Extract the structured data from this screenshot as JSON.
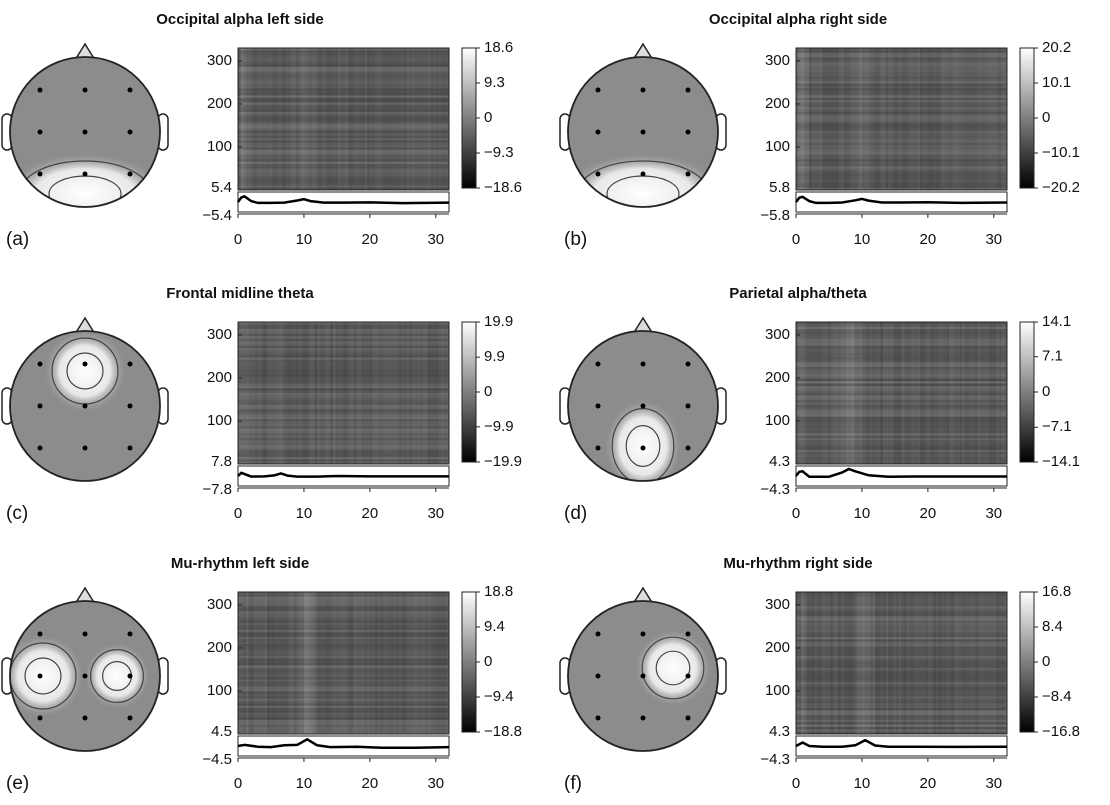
{
  "chart_data": [
    {
      "type": "heatmap",
      "label": "(a)",
      "title": "Occipital alpha left side",
      "ylim": [
        0,
        330
      ],
      "yticks": [
        100,
        200,
        300
      ],
      "xlim": [
        0,
        32
      ],
      "xticks": [
        0,
        10,
        20,
        30
      ],
      "colorbar": {
        "lim": [
          -18.6,
          18.6
        ],
        "ticks": [
          18.6,
          9.3,
          0,
          {
            "value": -9.3,
            "label": "−9.3"
          },
          {
            "value": -18.6,
            "label": "−18.6"
          }
        ]
      },
      "trace": {
        "ylim": [
          -5.4,
          5.4
        ],
        "yticks": [
          5.4,
          {
            "value": -5.4,
            "label": "−5.4"
          }
        ],
        "x": [
          0,
          0.5,
          1,
          2,
          3,
          5,
          7,
          9,
          10,
          11,
          13,
          16,
          20,
          25,
          32
        ],
        "values": [
          0,
          2.5,
          3,
          0.5,
          -0.5,
          -0.5,
          -0.3,
          0.8,
          1.5,
          0.5,
          -0.3,
          -0.3,
          -0.2,
          -0.6,
          -0.3
        ]
      }
    },
    {
      "type": "heatmap",
      "label": "(b)",
      "title": "Occipital alpha right side",
      "ylim": [
        0,
        330
      ],
      "yticks": [
        100,
        200,
        300
      ],
      "xlim": [
        0,
        32
      ],
      "xticks": [
        0,
        10,
        20,
        30
      ],
      "colorbar": {
        "lim": [
          -20.2,
          20.2
        ],
        "ticks": [
          20.2,
          10.1,
          0,
          {
            "value": -10.1,
            "label": "−10.1"
          },
          {
            "value": -20.2,
            "label": "−20.2"
          }
        ]
      },
      "trace": {
        "ylim": [
          -5.8,
          5.8
        ],
        "yticks": [
          5.8,
          {
            "value": -5.8,
            "label": "−5.8"
          }
        ],
        "x": [
          0,
          0.5,
          1,
          2,
          3,
          5,
          7,
          9,
          10,
          11,
          13,
          16,
          20,
          25,
          32
        ],
        "values": [
          0,
          2.5,
          3,
          0.5,
          -0.5,
          -0.5,
          -0.3,
          1,
          1.8,
          0.8,
          -0.3,
          -0.3,
          -0.2,
          -0.5,
          -0.3
        ]
      }
    },
    {
      "type": "heatmap",
      "label": "(c)",
      "title": "Frontal midline theta",
      "ylim": [
        0,
        330
      ],
      "yticks": [
        100,
        200,
        300
      ],
      "xlim": [
        0,
        32
      ],
      "xticks": [
        0,
        10,
        20,
        30
      ],
      "colorbar": {
        "lim": [
          -19.9,
          19.9
        ],
        "ticks": [
          19.9,
          9.9,
          0,
          {
            "value": -9.9,
            "label": "−9.9"
          },
          {
            "value": -19.9,
            "label": "−19.9"
          }
        ]
      },
      "trace": {
        "ylim": [
          -7.8,
          7.8
        ],
        "yticks": [
          7.8,
          {
            "value": -7.8,
            "label": "−7.8"
          }
        ],
        "x": [
          0,
          0.5,
          1,
          2,
          4,
          5.5,
          6.5,
          7.5,
          9,
          12,
          15,
          20,
          25,
          32
        ],
        "values": [
          0,
          2.5,
          1.5,
          -0.5,
          -0.3,
          0.5,
          2,
          0.3,
          -0.5,
          -0.5,
          0,
          -0.3,
          -0.3,
          -0.3
        ]
      }
    },
    {
      "type": "heatmap",
      "label": "(d)",
      "title": "Parietal alpha/theta",
      "ylim": [
        0,
        330
      ],
      "yticks": [
        100,
        200,
        300
      ],
      "xlim": [
        0,
        32
      ],
      "xticks": [
        0,
        10,
        20,
        30
      ],
      "colorbar": {
        "lim": [
          -14.1,
          14.1
        ],
        "ticks": [
          14.1,
          7.1,
          0,
          {
            "value": -7.1,
            "label": "−7.1"
          },
          {
            "value": -14.1,
            "label": "−14.1"
          }
        ]
      },
      "trace": {
        "ylim": [
          -4.3,
          4.3
        ],
        "yticks": [
          4.3,
          {
            "value": -4.3,
            "label": "−4.3"
          }
        ],
        "x": [
          0,
          0.5,
          1,
          2,
          3,
          5,
          7,
          8,
          9,
          11,
          14,
          18,
          25,
          32
        ],
        "values": [
          0,
          1.8,
          2,
          -0.3,
          -0.3,
          -0.3,
          1.5,
          3,
          2,
          0.3,
          -0.3,
          -0.2,
          -0.2,
          -0.2
        ]
      }
    },
    {
      "type": "heatmap",
      "label": "(e)",
      "title": "Mu-rhythm left side",
      "ylim": [
        0,
        330
      ],
      "yticks": [
        100,
        200,
        300
      ],
      "xlim": [
        0,
        32
      ],
      "xticks": [
        0,
        10,
        20,
        30
      ],
      "colorbar": {
        "lim": [
          -18.8,
          18.8
        ],
        "ticks": [
          18.8,
          9.4,
          0,
          {
            "value": -9.4,
            "label": "−9.4"
          },
          {
            "value": -18.8,
            "label": "−18.8"
          }
        ]
      },
      "trace": {
        "ylim": [
          -4.5,
          4.5
        ],
        "yticks": [
          4.5,
          {
            "value": -4.5,
            "label": "−4.5"
          }
        ],
        "x": [
          0,
          1,
          3,
          5,
          7,
          9,
          10.5,
          12,
          14,
          18,
          22,
          27,
          32
        ],
        "values": [
          0,
          0.5,
          -0.3,
          -0.5,
          0.3,
          0.5,
          3,
          0.3,
          -0.5,
          -0.3,
          -0.8,
          -0.8,
          -0.5
        ]
      }
    },
    {
      "type": "heatmap",
      "label": "(f)",
      "title": "Mu-rhythm right side",
      "ylim": [
        0,
        330
      ],
      "yticks": [
        100,
        200,
        300
      ],
      "xlim": [
        0,
        32
      ],
      "xticks": [
        0,
        10,
        20,
        30
      ],
      "colorbar": {
        "lim": [
          -16.8,
          16.8
        ],
        "ticks": [
          16.8,
          8.4,
          0,
          {
            "value": -8.4,
            "label": "−8.4"
          },
          {
            "value": -16.8,
            "label": "−16.8"
          }
        ]
      },
      "trace": {
        "ylim": [
          -4.3,
          4.3
        ],
        "yticks": [
          4.3,
          {
            "value": -4.3,
            "label": "−4.3"
          }
        ],
        "x": [
          0,
          1,
          2,
          4,
          7,
          9,
          10.5,
          12,
          14,
          18,
          24,
          32
        ],
        "values": [
          0,
          1.5,
          0,
          -0.3,
          -0.3,
          0.3,
          2.5,
          0.2,
          -0.3,
          -0.3,
          -0.4,
          -0.3
        ]
      }
    }
  ]
}
